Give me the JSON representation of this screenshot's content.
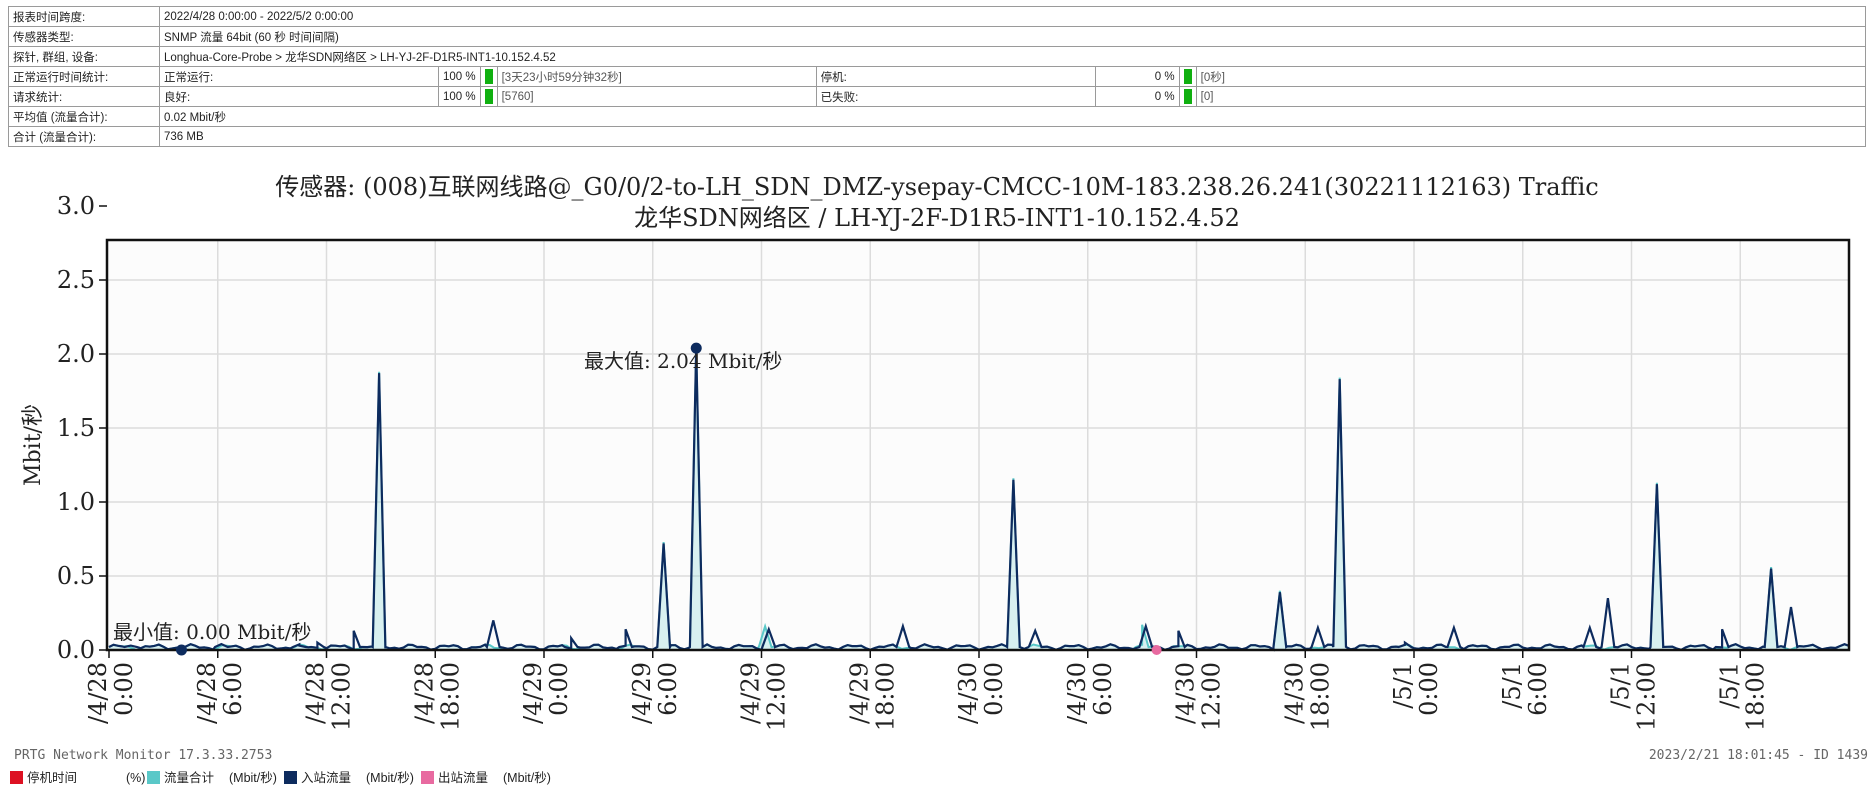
{
  "info_table": {
    "report_range_label": "报表时间跨度:",
    "report_range_value": "2022/4/28 0:00:00 - 2022/5/2 0:00:00",
    "sensor_type_label": "传感器类型:",
    "sensor_type_value": "SNMP 流量 64bit (60 秒 时间间隔)",
    "probe_label": "探针, 群组, 设备:",
    "probe_value": "Longhua-Core-Probe > 龙华SDN网络区 > LH-YJ-2F-D1R5-INT1-10.152.4.52",
    "uptime_label": "正常运行时间统计:",
    "uptime_up_label": "正常运行:",
    "uptime_up_pct": "100 %",
    "uptime_up_note": "[3天23小时59分钟32秒]",
    "uptime_down_label": "停机:",
    "uptime_down_pct": "0 %",
    "uptime_down_note": "[0秒]",
    "requests_label": "请求统计:",
    "requests_good_label": "良好:",
    "requests_good_pct": "100 %",
    "requests_good_note": "[5760]",
    "requests_failed_label": "已失败:",
    "requests_failed_pct": "0 %",
    "requests_failed_note": "[0]",
    "average_label": "平均值 (流量合计):",
    "average_value": "0.02 Mbit/秒",
    "total_label": "合计 (流量合计):",
    "total_value": "736 MB"
  },
  "chart_data": {
    "type": "line",
    "title_line1": "传感器: (008)互联网线路@_G0/0/2-to-LH_SDN_DMZ-ysepay-CMCC-10M-183.238.26.241(30221112163) Traffic",
    "title_line2": "龙华SDN网络区 / LH-YJ-2F-D1R5-INT1-10.152.4.52",
    "ylabel": "Mbit/秒",
    "ylim": [
      0,
      3.0
    ],
    "yticks": [
      "0.0",
      "0.5",
      "1.0",
      "1.5",
      "2.0",
      "2.5",
      "3.0"
    ],
    "xlim_hours": [
      0,
      96
    ],
    "xtick_labels": [
      "/4/28 0:00",
      "/4/28 6:00",
      "/4/28 12:00",
      "/4/28 18:00",
      "/4/29 0:00",
      "/4/29 6:00",
      "/4/29 12:00",
      "/4/29 18:00",
      "/4/30 0:00",
      "/4/30 6:00",
      "/4/30 12:00",
      "/4/30 18:00",
      "/5/1 0:00",
      "/5/1 6:00",
      "/5/1 12:00",
      "/5/1 18:00"
    ],
    "grid": true,
    "max_annotation": "最大值: 2.04 Mbit/秒",
    "min_annotation": "最小值: 0.00 Mbit/秒",
    "max_point": {
      "hours": 32.4,
      "value": 2.04
    },
    "min_point": {
      "hours": 4.0,
      "value": 0.0
    },
    "outbound_point": {
      "hours": 57.8,
      "value": 0.0
    },
    "series": [
      {
        "name": "入站流量",
        "color": "#0d2b5e",
        "spikes": [
          [
            1.2,
            0.03
          ],
          [
            6.2,
            0.04
          ],
          [
            10.5,
            0.03
          ],
          [
            11.5,
            0.05
          ],
          [
            13.5,
            0.13
          ],
          [
            14.9,
            1.87
          ],
          [
            21.2,
            0.2
          ],
          [
            25.5,
            0.08
          ],
          [
            28.5,
            0.14
          ],
          [
            30.6,
            0.72
          ],
          [
            32.4,
            2.04
          ],
          [
            36.4,
            0.14
          ],
          [
            43.8,
            0.16
          ],
          [
            49.9,
            1.15
          ],
          [
            51.1,
            0.13
          ],
          [
            57.2,
            0.16
          ],
          [
            59.0,
            0.13
          ],
          [
            64.6,
            0.39
          ],
          [
            66.7,
            0.15
          ],
          [
            67.9,
            1.83
          ],
          [
            71.5,
            0.05
          ],
          [
            74.2,
            0.15
          ],
          [
            81.7,
            0.15
          ],
          [
            82.7,
            0.35
          ],
          [
            85.4,
            1.12
          ],
          [
            89.0,
            0.14
          ],
          [
            91.7,
            0.55
          ],
          [
            92.8,
            0.29
          ]
        ],
        "values_mbit_per_s_baseline": 0.02
      },
      {
        "name": "流量合计",
        "color": "#5ac8c8",
        "spikes": [
          [
            14.9,
            1.88
          ],
          [
            30.6,
            0.73
          ],
          [
            32.4,
            2.04
          ],
          [
            36.2,
            0.16
          ],
          [
            49.9,
            1.16
          ],
          [
            57.0,
            0.17
          ],
          [
            64.6,
            0.4
          ],
          [
            67.9,
            1.84
          ],
          [
            85.4,
            1.13
          ],
          [
            91.7,
            0.56
          ]
        ]
      },
      {
        "name": "出站流量",
        "color": "#e86aa0",
        "values_mbit_per_s_baseline": 0.0
      },
      {
        "name": "停机时间",
        "color": "#dd1122"
      }
    ]
  },
  "legend": {
    "items": [
      {
        "label": "停机时间",
        "unit": "(%)",
        "color": "#dd1122"
      },
      {
        "label": "流量合计",
        "unit": "(Mbit/秒)",
        "color": "#5ac8c8"
      },
      {
        "label": "入站流量",
        "unit": "(Mbit/秒)",
        "color": "#0d2b5e"
      },
      {
        "label": "出站流量",
        "unit": "(Mbit/秒)",
        "color": "#e86aa0"
      }
    ]
  },
  "footer": {
    "left": "PRTG Network Monitor 17.3.33.2753",
    "right": "2023/2/21 18:01:45 - ID 1439"
  }
}
